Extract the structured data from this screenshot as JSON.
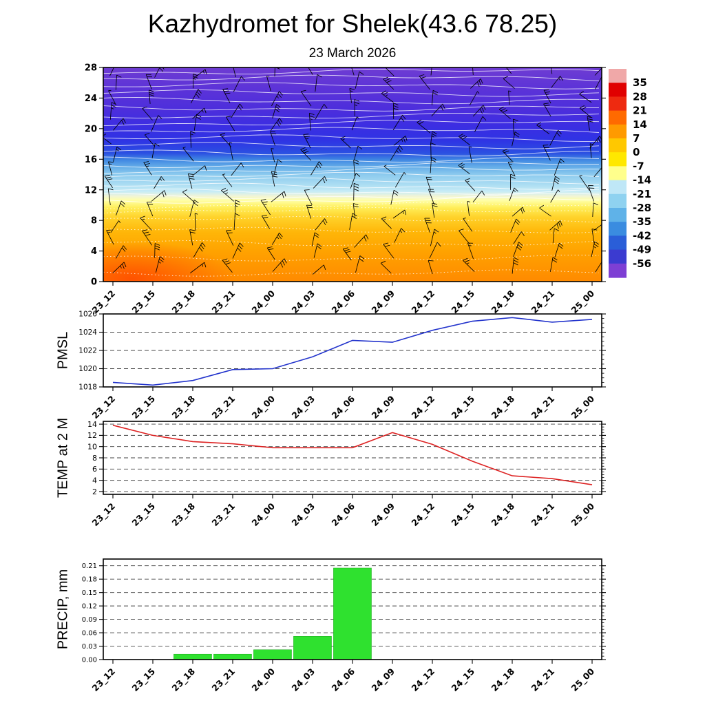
{
  "title": "Kazhydromet for Shelek(43.6 78.25)",
  "subtitle": "23 March 2026",
  "time_labels": [
    "23_12",
    "23_15",
    "23_18",
    "23_21",
    "24_00",
    "24_03",
    "24_06",
    "24_09",
    "24_12",
    "24_15",
    "24_18",
    "24_21",
    "25_00"
  ],
  "axis_labels": {
    "pmsl": "PMSL",
    "temp": "TEMP at 2 M",
    "precip": "PRECIP, mm"
  },
  "cross_section": {
    "y_ticks": [
      0,
      4,
      8,
      12,
      16,
      20,
      24,
      28
    ],
    "ylim": [
      0,
      28
    ],
    "gradient_stops": [
      [
        0,
        "#6e3cd2"
      ],
      [
        0.1,
        "#5c33d8"
      ],
      [
        0.2,
        "#4c2edc"
      ],
      [
        0.27,
        "#3c2ee2"
      ],
      [
        0.34,
        "#2f33e4"
      ],
      [
        0.4,
        "#2b50e2"
      ],
      [
        0.43,
        "#3f86e2"
      ],
      [
        0.465,
        "#66aee8"
      ],
      [
        0.5,
        "#8ccaee"
      ],
      [
        0.545,
        "#aadcf2"
      ],
      [
        0.58,
        "#c8ecf6"
      ],
      [
        0.6,
        "#f0f4d8"
      ],
      [
        0.62,
        "#ffffa8"
      ],
      [
        0.655,
        "#ffee58"
      ],
      [
        0.7,
        "#ffd22a"
      ],
      [
        0.77,
        "#ffb608"
      ],
      [
        0.86,
        "#ffa200"
      ],
      [
        1,
        "#ff8a00"
      ]
    ],
    "colorbar": {
      "tick_labels": [
        "35",
        "28",
        "21",
        "14",
        "7",
        "0",
        "-7",
        "-14",
        "-21",
        "-28",
        "-35",
        "-42",
        "-49",
        "-56"
      ],
      "segment_colors": [
        "#f0a8a8",
        "#e00000",
        "#ee2a10",
        "#ff6a00",
        "#ff9a00",
        "#ffc800",
        "#ffe800",
        "#ffff8c",
        "#bfe7f7",
        "#8fd2f0",
        "#5fb2e8",
        "#3a8ce0",
        "#2a5ed8",
        "#3b3bd0",
        "#7e3fd4"
      ]
    }
  },
  "chart_data": [
    {
      "type": "heatmap",
      "name": "time-height-cross-section",
      "title": "Time-height cross-section: temperature shading with wind barbs and white contour lines",
      "x": [
        "23_12",
        "23_15",
        "23_18",
        "23_21",
        "24_00",
        "24_03",
        "24_06",
        "24_09",
        "24_12",
        "24_15",
        "24_18",
        "24_21",
        "25_00"
      ],
      "y_ticks": [
        0,
        4,
        8,
        12,
        16,
        20,
        24,
        28
      ],
      "ylim": [
        0,
        28
      ],
      "colorbar_ticks": [
        35,
        28,
        21,
        14,
        7,
        0,
        -7,
        -14,
        -21,
        -28,
        -35,
        -42,
        -49,
        -56
      ],
      "shading_note": "orange/red near surface (levels 0-8), yellow band levels 9-11, light blue 12-16, dark blue 16-20, purple above 20 (coldest < -56); black wind barbs at every grid point, thin white contour lines overlaid (dotted in the warm lower layer)"
    },
    {
      "type": "line",
      "name": "PMSL",
      "x": [
        "23_12",
        "23_15",
        "23_18",
        "23_21",
        "24_00",
        "24_03",
        "24_06",
        "24_09",
        "24_12",
        "24_15",
        "24_18",
        "24_21",
        "25_00"
      ],
      "values": [
        1018.5,
        1018.2,
        1018.7,
        1019.9,
        1020.0,
        1021.3,
        1023.1,
        1022.9,
        1024.2,
        1025.2,
        1025.6,
        1025.1,
        1025.4
      ],
      "y_ticks": [
        1018,
        1020,
        1022,
        1024,
        1026
      ],
      "y_tick_labels": [
        "1018",
        "1020",
        "1022",
        "1024",
        "1026"
      ],
      "ylim": [
        1018,
        1026
      ],
      "color": "#2233cc",
      "grid": "dashed horizontal"
    },
    {
      "type": "line",
      "name": "TEMP at 2 M",
      "x": [
        "23_12",
        "23_15",
        "23_18",
        "23_21",
        "24_00",
        "24_03",
        "24_06",
        "24_09",
        "24_12",
        "24_15",
        "24_18",
        "24_21",
        "25_00"
      ],
      "values": [
        13.8,
        12.0,
        10.9,
        10.5,
        9.8,
        9.8,
        9.8,
        12.5,
        10.4,
        7.4,
        4.8,
        4.3,
        3.2
      ],
      "y_ticks": [
        2,
        4,
        6,
        8,
        10,
        12,
        14
      ],
      "y_tick_labels": [
        "2",
        "4",
        "6",
        "8",
        "10",
        "12",
        "14"
      ],
      "ylim": [
        1.5,
        14.5
      ],
      "color": "#dd2222",
      "grid": "dashed horizontal"
    },
    {
      "type": "bar",
      "name": "PRECIP, mm",
      "x": [
        "23_12",
        "23_15",
        "23_18",
        "23_21",
        "24_00",
        "24_03",
        "24_06",
        "24_09",
        "24_12",
        "24_15",
        "24_18",
        "24_21",
        "25_00"
      ],
      "values": [
        0,
        0,
        0.012,
        0.012,
        0.022,
        0.052,
        0.205,
        0,
        0,
        0,
        0,
        0,
        0
      ],
      "y_ticks": [
        0,
        0.03,
        0.06,
        0.09,
        0.12,
        0.15,
        0.18,
        0.21
      ],
      "y_tick_labels": [
        "0.00",
        "0.03",
        "0.06",
        "0.09",
        "0.12",
        "0.15",
        "0.18",
        "0.21"
      ],
      "ylim": [
        0,
        0.225
      ],
      "color": "#2fe12f",
      "grid": "dashed horizontal"
    }
  ]
}
